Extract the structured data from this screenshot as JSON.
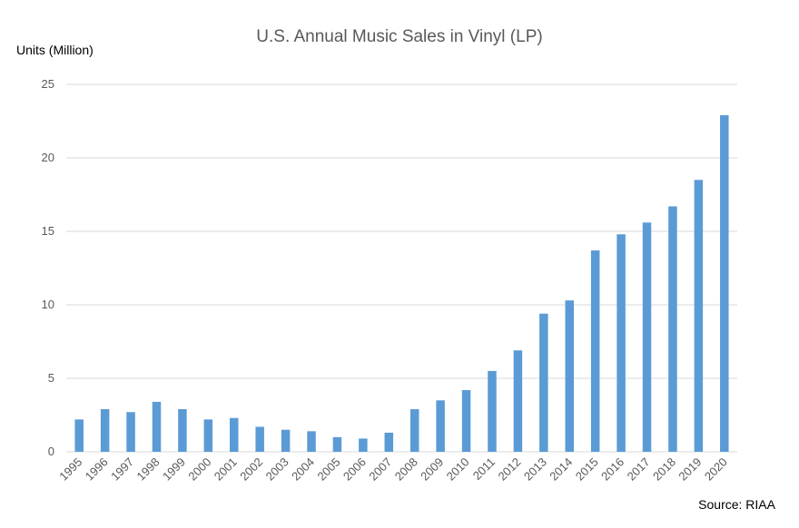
{
  "chart_data": {
    "type": "bar",
    "title": "U.S. Annual Music Sales in Vinyl (LP)",
    "ylabel": "Units (Million)",
    "xlabel": "",
    "source": "Source: RIAA",
    "categories": [
      "1995",
      "1996",
      "1997",
      "1998",
      "1999",
      "2000",
      "2001",
      "2002",
      "2003",
      "2004",
      "2005",
      "2006",
      "2007",
      "2008",
      "2009",
      "2010",
      "2011",
      "2012",
      "2013",
      "2014",
      "2015",
      "2016",
      "2017",
      "2018",
      "2019",
      "2020"
    ],
    "values": [
      2.2,
      2.9,
      2.7,
      3.4,
      2.9,
      2.2,
      2.3,
      1.7,
      1.5,
      1.4,
      1.0,
      0.9,
      1.3,
      2.9,
      3.5,
      4.2,
      5.5,
      6.9,
      9.4,
      10.3,
      13.7,
      14.8,
      15.6,
      16.7,
      18.5,
      22.9
    ],
    "ylim": [
      0,
      25
    ],
    "yticks": [
      0,
      5,
      10,
      15,
      20,
      25
    ],
    "grid": true,
    "legend": "none",
    "bar_color": "#5b9bd5",
    "grid_color": "#d9d9d9"
  }
}
